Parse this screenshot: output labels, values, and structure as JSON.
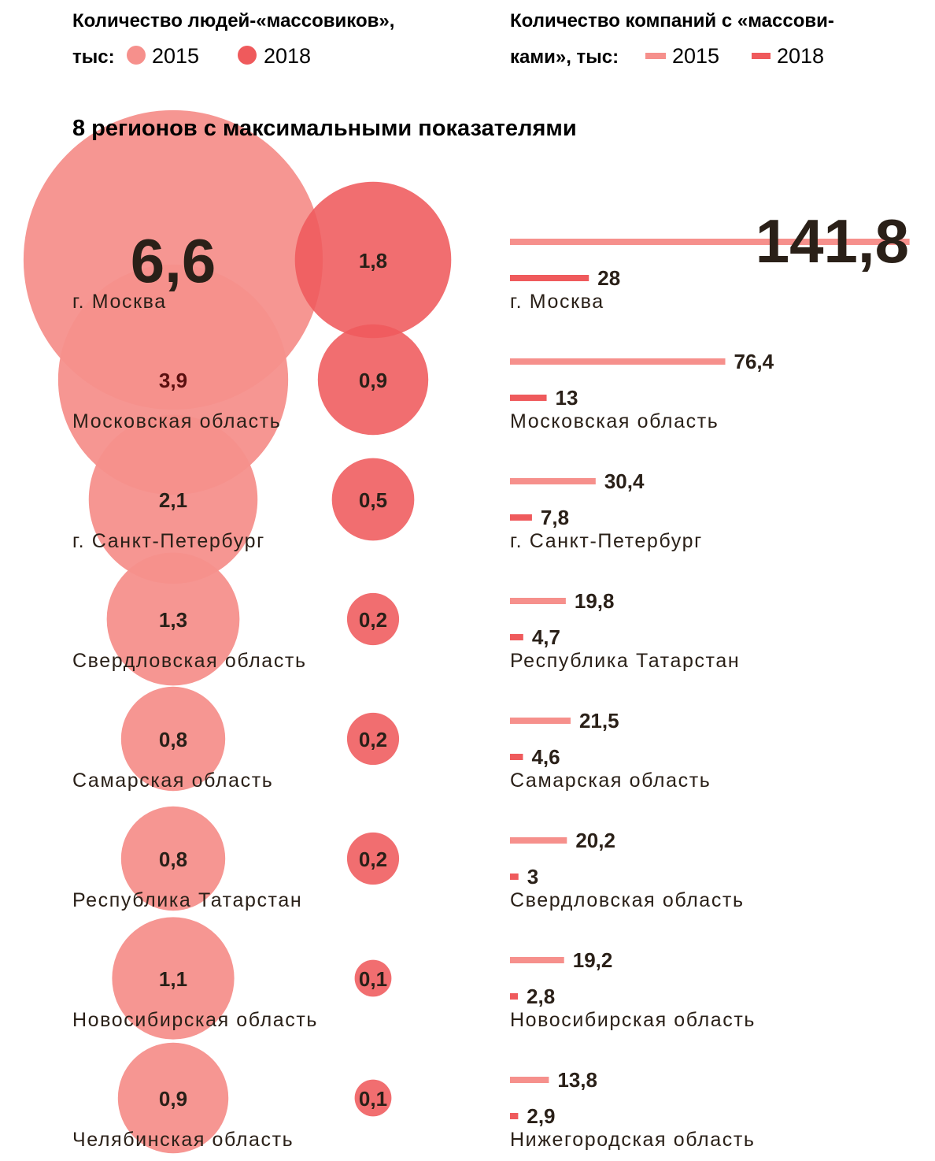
{
  "legend_people": {
    "line1": "Количество людей-«массовиков»,",
    "line2": "тыс:",
    "y2015": "2015",
    "y2018": "2018"
  },
  "legend_companies": {
    "line1": "Количество компаний с «массови-",
    "line2": "ками», тыс:",
    "y2015": "2015",
    "y2018": "2018"
  },
  "colors": {
    "c2015": "#f6908c",
    "c2018": "#ef5a5c",
    "text": "#2a2018"
  },
  "chart_data": [
    {
      "type": "bubble",
      "title": "8 регионов с максимальными показателями",
      "categories": [
        "г. Москва",
        "Московская область",
        "г. Санкт-Петербург",
        "Свердловская область",
        "Самарская область",
        "Республика Татарстан",
        "Новосибирская область",
        "Челябинская область"
      ],
      "series": [
        {
          "name": "2015",
          "values": [
            6.6,
            3.9,
            2.1,
            1.3,
            0.8,
            0.8,
            1.1,
            0.9
          ],
          "labels": [
            "6,6",
            "3,9",
            "2,1",
            "1,3",
            "0,8",
            "0,8",
            "1,1",
            "0,9"
          ]
        },
        {
          "name": "2018",
          "values": [
            1.8,
            0.9,
            0.5,
            0.2,
            0.2,
            0.2,
            0.1,
            0.1
          ],
          "labels": [
            "1,8",
            "0,9",
            "0,5",
            "0,2",
            "0,2",
            "0,2",
            "0,1",
            "0,1"
          ]
        }
      ]
    },
    {
      "type": "bar",
      "categories": [
        "г. Москва",
        "Московская область",
        "г. Санкт-Петербург",
        "Республика Татарстан",
        "Самарская область",
        "Свердловская область",
        "Новосибирская область",
        "Нижегородская область"
      ],
      "series": [
        {
          "name": "2015",
          "values": [
            141.8,
            76.4,
            30.4,
            19.8,
            21.5,
            20.2,
            19.2,
            13.8
          ],
          "labels": [
            "141,8",
            "76,4",
            "30,4",
            "19,8",
            "21,5",
            "20,2",
            "19,2",
            "13,8"
          ]
        },
        {
          "name": "2018",
          "values": [
            28,
            13,
            7.8,
            4.7,
            4.6,
            3,
            2.8,
            2.9
          ],
          "labels": [
            "28",
            "13",
            "7,8",
            "4,7",
            "4,6",
            "3",
            "2,8",
            "2,9"
          ]
        }
      ]
    }
  ]
}
